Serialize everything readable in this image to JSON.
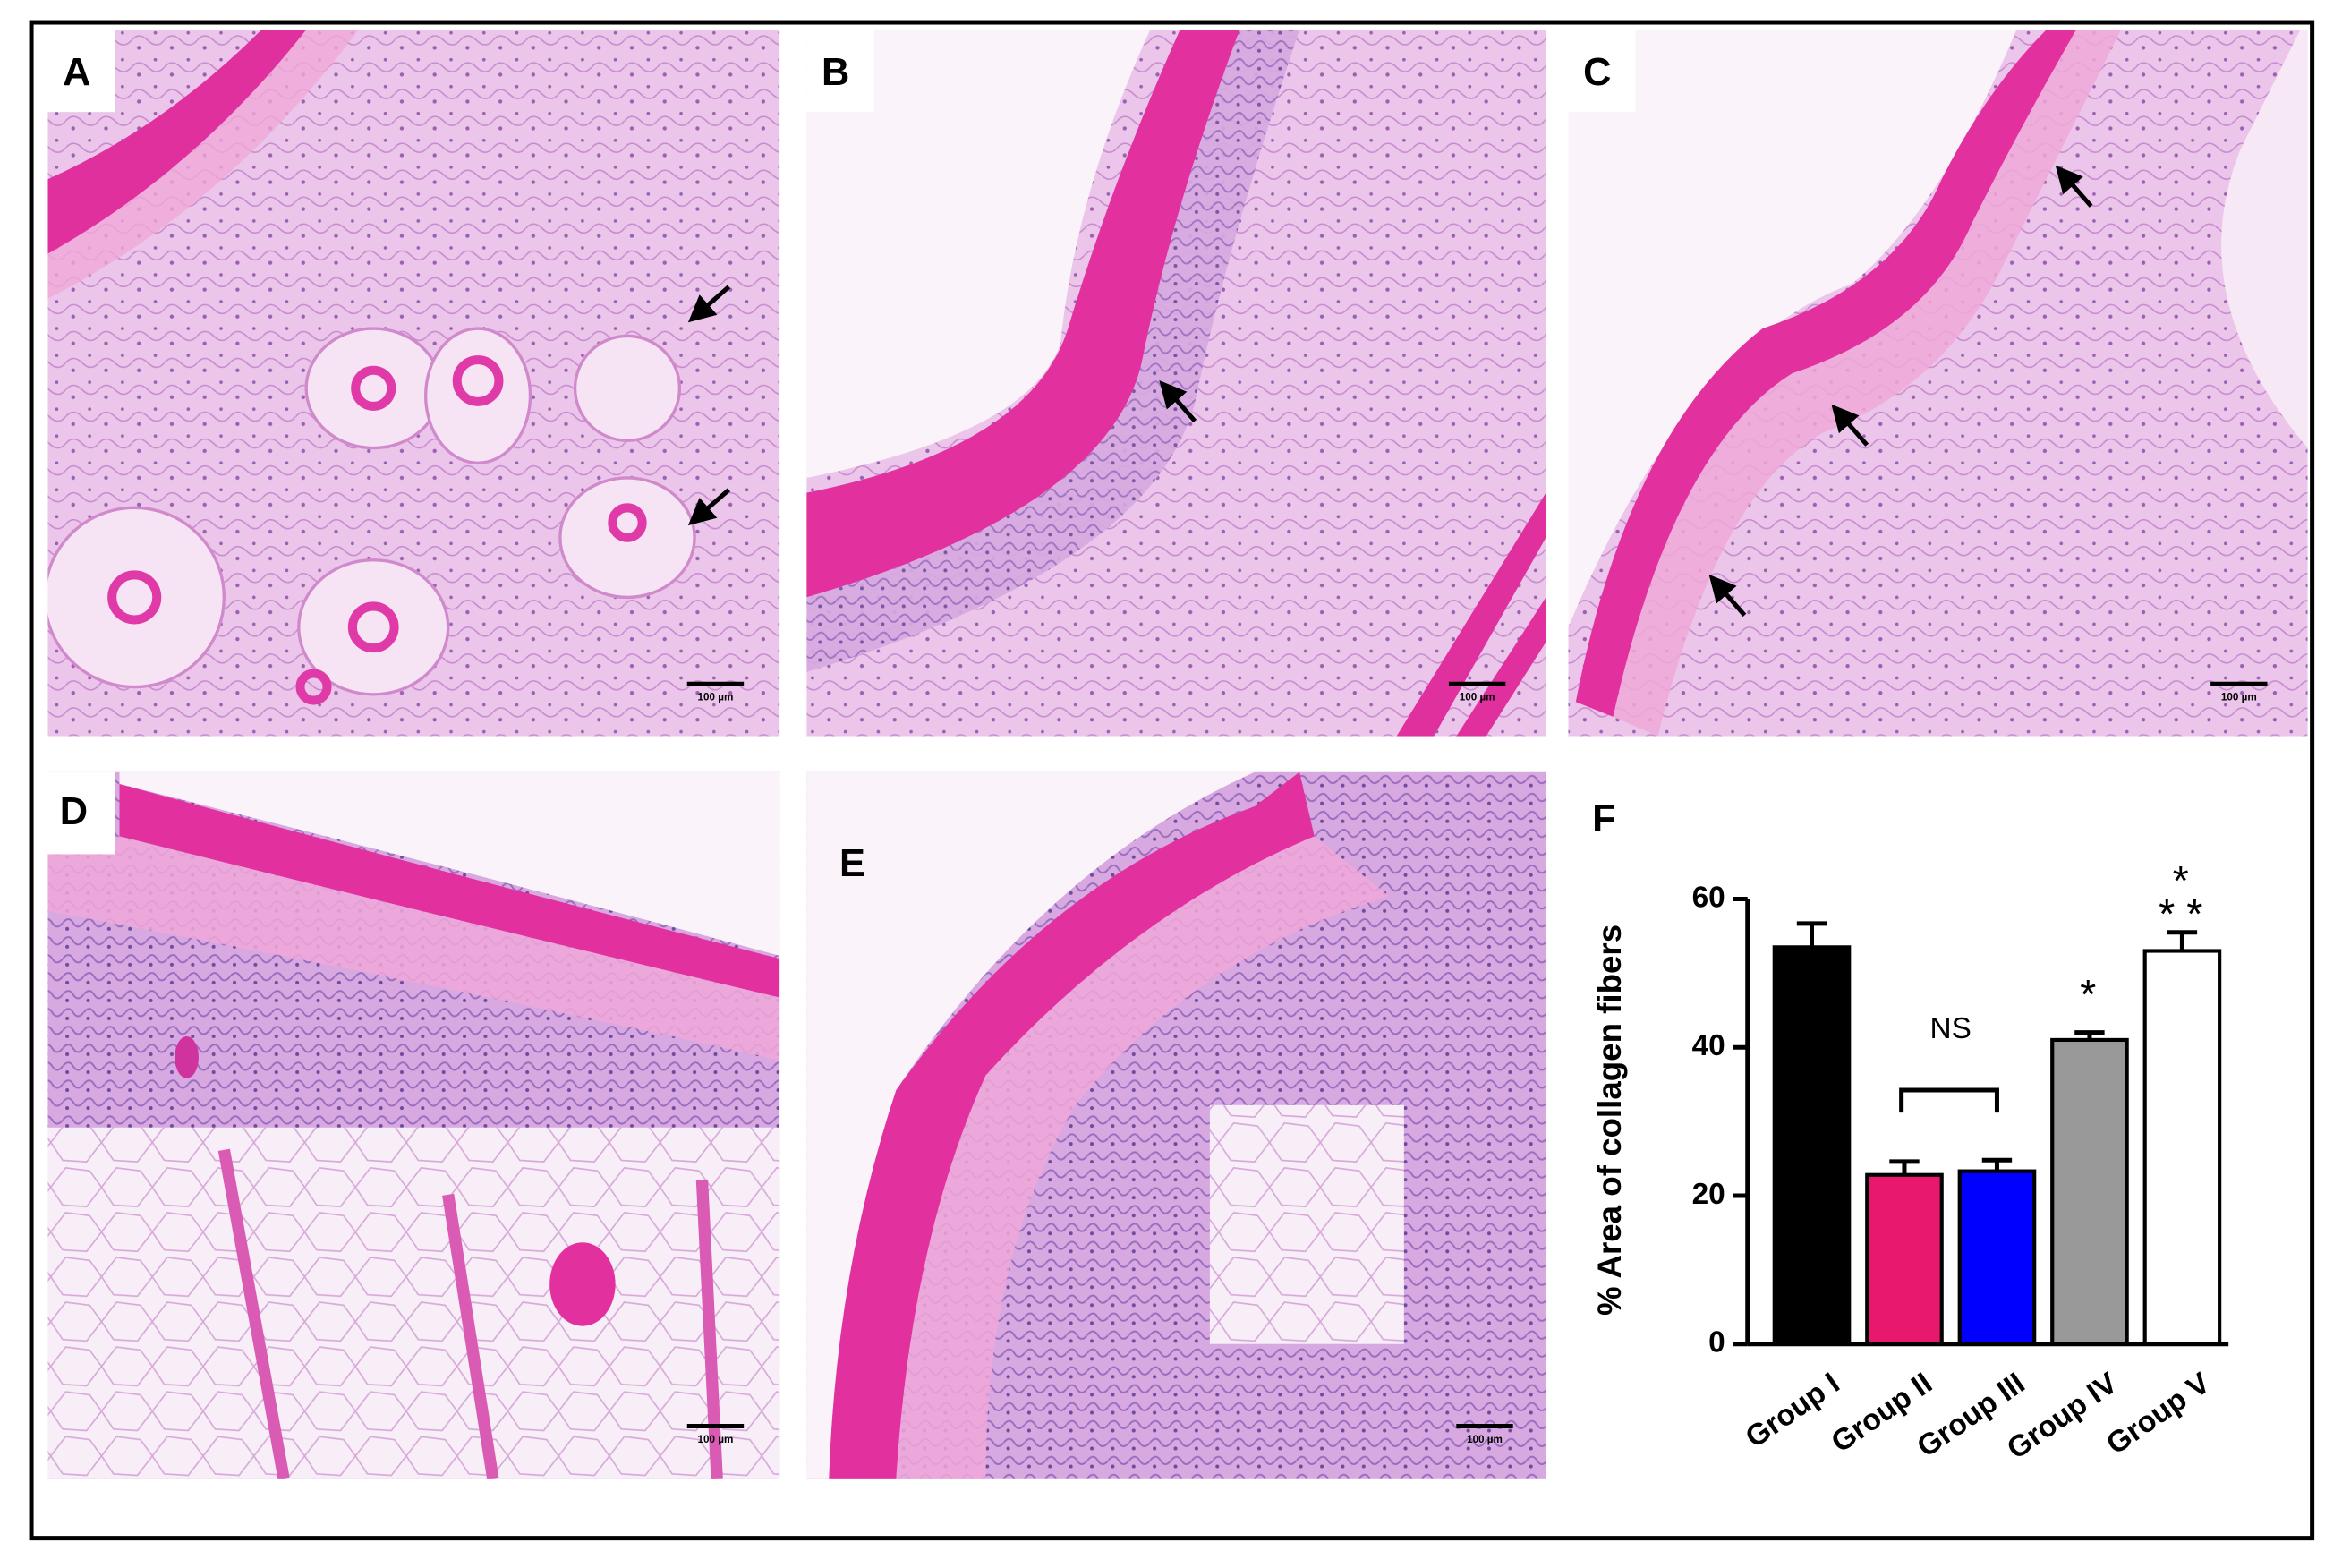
{
  "panels": [
    {
      "label": "A",
      "scale_bar": "100 µm"
    },
    {
      "label": "B",
      "scale_bar": "100 µm"
    },
    {
      "label": "C",
      "scale_bar": "100 µm"
    },
    {
      "label": "D",
      "scale_bar": "100 µm"
    },
    {
      "label": "E",
      "scale_bar": "100 µm"
    }
  ],
  "chart_data": {
    "type": "bar",
    "panel_label": "F",
    "ylabel": "% Area of collagen fibers",
    "categories": [
      "Group I",
      "Group II",
      "Group III",
      "Group IV",
      "Group V"
    ],
    "values": [
      53.5,
      22.8,
      23.3,
      41,
      53
    ],
    "errors": [
      3.2,
      1.8,
      1.5,
      1,
      2.5
    ],
    "colors": [
      "#000000",
      "#e8186e",
      "#0000ff",
      "#999999",
      "#ffffff"
    ],
    "ylim": [
      0,
      60
    ],
    "yticks": [
      0,
      20,
      40,
      60
    ],
    "annotations": [
      "NS",
      "*",
      "*",
      "* *"
    ]
  }
}
